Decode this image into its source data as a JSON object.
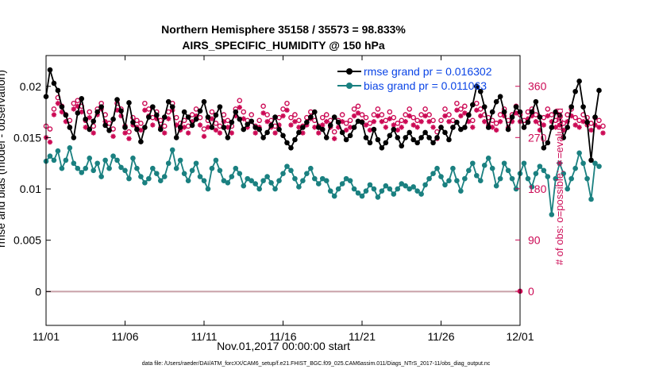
{
  "chart_data": {
    "type": "line",
    "title": "Northern Hemisphere 35158 / 35573 = 98.833%",
    "subtitle": "AIRS_SPECIFIC_HUMIDITY @ 150 hPa",
    "xlabel": "Nov.01,2017 00:00:00 start",
    "ylabel": "rmse and bias (model - observation)",
    "y2label": "# of obs: o=possible; ∗=evaluated",
    "xlim": [
      0,
      30
    ],
    "ylim": [
      -0.0033,
      0.023
    ],
    "y2lim": [
      -60,
      414
    ],
    "x_ticks": [
      0,
      5,
      10,
      15,
      20,
      25,
      30
    ],
    "x_tick_labels": [
      "11/01",
      "11/06",
      "11/11",
      "11/16",
      "11/21",
      "11/26",
      "12/01"
    ],
    "y_ticks": [
      0,
      0.005,
      0.01,
      0.015,
      0.02
    ],
    "y_tick_labels": [
      "0",
      "0.005",
      "0.01",
      "0.015",
      "0.02"
    ],
    "y2_ticks": [
      0,
      90,
      180,
      270,
      360
    ],
    "y2_tick_labels": [
      "0",
      "90",
      "180",
      "270",
      "360"
    ],
    "grid": false,
    "legend_position": "top-right",
    "footnote": "data file: /Users/raeder/DAI/ATM_forcXX/CAM6_setup/f.e21.FHIST_BGC.f09_025.CAM6assim.011/Diags_NTrS_2017-11/obs_diag_output.nc",
    "step_days": 0.25,
    "series": [
      {
        "name": "rmse grand pr = 0.016302",
        "color": "#000000",
        "axis": "left",
        "values": [
          0.019,
          0.0216,
          0.0203,
          0.0196,
          0.018,
          0.0172,
          0.016,
          0.015,
          0.0174,
          0.0188,
          0.0168,
          0.0158,
          0.0166,
          0.0175,
          0.018,
          0.0162,
          0.0157,
          0.0168,
          0.0187,
          0.0176,
          0.016,
          0.0184,
          0.0165,
          0.0158,
          0.0146,
          0.016,
          0.017,
          0.018,
          0.0172,
          0.0158,
          0.017,
          0.0185,
          0.018,
          0.015,
          0.016,
          0.0175,
          0.017,
          0.0162,
          0.0168,
          0.0176,
          0.0185,
          0.017,
          0.016,
          0.0172,
          0.018,
          0.016,
          0.015,
          0.0165,
          0.0175,
          0.0168,
          0.0158,
          0.0163,
          0.0166,
          0.016,
          0.0158,
          0.015,
          0.0155,
          0.0162,
          0.017,
          0.0158,
          0.0152,
          0.0145,
          0.014,
          0.0148,
          0.0155,
          0.016,
          0.0165,
          0.017,
          0.0175,
          0.016,
          0.0158,
          0.015,
          0.0162,
          0.017,
          0.0165,
          0.0155,
          0.0148,
          0.0152,
          0.016,
          0.0166,
          0.0165,
          0.015,
          0.0145,
          0.0158,
          0.0148,
          0.014,
          0.0145,
          0.0152,
          0.0158,
          0.015,
          0.0142,
          0.015,
          0.0155,
          0.0148,
          0.0145,
          0.015,
          0.0155,
          0.015,
          0.0145,
          0.015,
          0.016,
          0.0155,
          0.0148,
          0.016,
          0.0165,
          0.0158,
          0.016,
          0.0172,
          0.0182,
          0.02,
          0.0195,
          0.018,
          0.016,
          0.0175,
          0.0185,
          0.019,
          0.0175,
          0.0158,
          0.017,
          0.018,
          0.0175,
          0.016,
          0.0165,
          0.0175,
          0.0185,
          0.017,
          0.014,
          0.0145,
          0.016,
          0.0175,
          0.0172,
          0.015,
          0.016,
          0.018,
          0.0195,
          0.0205,
          0.018,
          0.0165,
          0.0128,
          0.017,
          0.0196
        ]
      },
      {
        "name": "bias grand pr = 0.011063",
        "color": "#1a8080",
        "axis": "left",
        "values": [
          0.0127,
          0.0132,
          0.0128,
          0.0137,
          0.012,
          0.0128,
          0.014,
          0.0125,
          0.012,
          0.0116,
          0.012,
          0.013,
          0.0118,
          0.0125,
          0.0112,
          0.0128,
          0.012,
          0.0132,
          0.0128,
          0.0121,
          0.0118,
          0.011,
          0.013,
          0.012,
          0.0112,
          0.0106,
          0.011,
          0.012,
          0.0115,
          0.0108,
          0.0112,
          0.0125,
          0.0138,
          0.012,
          0.0128,
          0.0115,
          0.0108,
          0.0118,
          0.0125,
          0.0112,
          0.0108,
          0.01,
          0.012,
          0.0128,
          0.0118,
          0.0108,
          0.0106,
          0.0112,
          0.012,
          0.0115,
          0.0103,
          0.011,
          0.0108,
          0.0105,
          0.01,
          0.0108,
          0.0112,
          0.0106,
          0.01,
          0.0108,
          0.0115,
          0.0122,
          0.0118,
          0.011,
          0.0102,
          0.0108,
          0.0115,
          0.012,
          0.011,
          0.0105,
          0.011,
          0.0108,
          0.0098,
          0.0093,
          0.01,
          0.0105,
          0.011,
          0.0108,
          0.01,
          0.0096,
          0.0093,
          0.0098,
          0.0104,
          0.01,
          0.0092,
          0.0098,
          0.0103,
          0.01,
          0.0095,
          0.01,
          0.0105,
          0.0103,
          0.01,
          0.0102,
          0.0098,
          0.0095,
          0.0104,
          0.011,
          0.0115,
          0.012,
          0.0112,
          0.0104,
          0.0108,
          0.012,
          0.0108,
          0.0098,
          0.011,
          0.0118,
          0.0125,
          0.0113,
          0.0108,
          0.0123,
          0.013,
          0.012,
          0.0103,
          0.011,
          0.0125,
          0.0118,
          0.011,
          0.01,
          0.0115,
          0.0125,
          0.011,
          0.0102,
          0.0115,
          0.0122,
          0.0118,
          0.0112,
          0.0075,
          0.011,
          0.0125,
          0.0115,
          0.01,
          0.011,
          0.012,
          0.0135,
          0.0125,
          0.011,
          0.009,
          0.0125,
          0.0122
        ]
      },
      {
        "name": "obs possible",
        "marker": "o",
        "color": "#cc0a55",
        "axis": "right",
        "values": [
          290,
          285,
          320,
          340,
          325,
          310,
          300,
          330,
          335,
          325,
          300,
          315,
          290,
          320,
          330,
          310,
          295,
          285,
          330,
          320,
          290,
          280,
          305,
          300,
          295,
          330,
          320,
          305,
          315,
          300,
          290,
          315,
          330,
          305,
          295,
          300,
          290,
          310,
          320,
          305,
          285,
          300,
          315,
          295,
          290,
          310,
          300,
          290,
          320,
          335,
          315,
          300,
          310,
          290,
          300,
          325,
          310,
          300,
          290,
          305,
          320,
          330,
          305,
          310,
          300,
          290,
          305,
          315,
          300,
          290,
          305,
          310,
          300,
          280,
          300,
          310,
          295,
          300,
          320,
          325,
          310,
          305,
          295,
          310,
          320,
          310,
          300,
          315,
          305,
          295,
          300,
          310,
          320,
          305,
          300,
          310,
          320,
          310,
          300,
          280,
          300,
          320,
          310,
          300,
          330,
          320,
          325,
          310,
          300,
          330,
          320,
          310,
          305,
          300,
          295,
          310,
          320,
          300,
          310,
          325,
          310,
          300,
          315,
          320,
          310,
          295,
          305,
          320,
          310,
          300,
          305,
          295,
          310,
          320,
          305,
          300,
          310,
          305,
          295,
          305,
          300,
          290
        ]
      },
      {
        "name": "obs evaluated",
        "marker": "*",
        "color": "#cc0a55",
        "axis": "right",
        "values": [
          270,
          262,
          310,
          330,
          315,
          298,
          288,
          320,
          325,
          315,
          288,
          305,
          278,
          310,
          320,
          298,
          283,
          272,
          318,
          308,
          278,
          268,
          292,
          288,
          283,
          318,
          308,
          292,
          303,
          288,
          278,
          303,
          318,
          292,
          283,
          288,
          278,
          298,
          308,
          292,
          272,
          288,
          303,
          283,
          278,
          298,
          288,
          278,
          308,
          323,
          303,
          288,
          298,
          278,
          288,
          313,
          298,
          288,
          278,
          292,
          308,
          318,
          292,
          298,
          288,
          278,
          292,
          303,
          288,
          278,
          292,
          298,
          288,
          268,
          288,
          298,
          283,
          288,
          308,
          313,
          298,
          292,
          283,
          298,
          308,
          298,
          288,
          303,
          292,
          283,
          288,
          298,
          308,
          292,
          288,
          298,
          308,
          298,
          288,
          268,
          288,
          308,
          298,
          288,
          318,
          308,
          313,
          298,
          288,
          318,
          308,
          298,
          292,
          288,
          283,
          298,
          308,
          288,
          298,
          313,
          298,
          288,
          303,
          308,
          298,
          283,
          292,
          308,
          298,
          288,
          292,
          283,
          298,
          308,
          292,
          288,
          298,
          292,
          283,
          292,
          288,
          278
        ]
      }
    ]
  }
}
